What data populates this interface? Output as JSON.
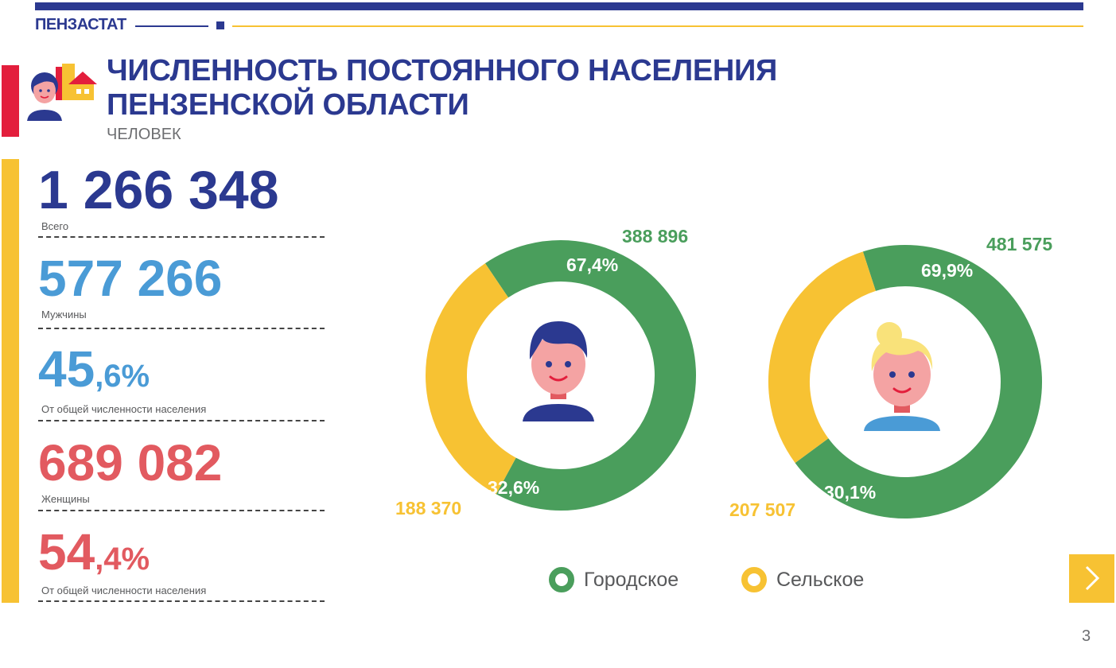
{
  "brand": "ПЕНЗАСТАТ",
  "title_line1": "ЧИСЛЕННОСТЬ ПОСТОЯННОГО НАСЕЛЕНИЯ",
  "title_line2": "ПЕНЗЕНСКОЙ ОБЛАСТИ",
  "subtitle": "ЧЕЛОВЕК",
  "stats": {
    "total": {
      "value": "1 266 348",
      "label": "Всего"
    },
    "men": {
      "value": "577 266",
      "label": "Мужчины"
    },
    "men_share": {
      "int": "45",
      "frac": ",6%",
      "label": "От общей численности  населения"
    },
    "women": {
      "value": "689 082",
      "label": "Женщины"
    },
    "women_share": {
      "int": "54",
      "frac": ",4%",
      "label": "От общей численности  населения"
    }
  },
  "colors": {
    "urban": "#4a9e5c",
    "rural": "#f7c233",
    "navy": "#2b3990",
    "light_blue": "#4a9bd6",
    "red": "#e25a60"
  },
  "icons": {
    "header": "population-people-house-icon",
    "men_chart": "man-avatar-icon",
    "women_chart": "woman-avatar-icon",
    "next": "chevron-right-icon"
  },
  "legend": {
    "urban": "Городское",
    "rural": "Сельское"
  },
  "page_number": "3",
  "chart_data": [
    {
      "type": "pie",
      "categories": [
        "Городское",
        "Сельское"
      ],
      "values": [
        388896,
        188370
      ],
      "value_labels": [
        "388 896",
        "188 370"
      ],
      "percent_labels": [
        "67,4%",
        "32,6%"
      ],
      "percents": [
        67.4,
        32.6
      ]
    },
    {
      "type": "pie",
      "categories": [
        "Городское",
        "Сельское"
      ],
      "values": [
        481575,
        207507
      ],
      "value_labels": [
        "481 575",
        "207 507"
      ],
      "percent_labels": [
        "69,9%",
        "30,1%"
      ],
      "percents": [
        69.9,
        30.1
      ]
    }
  ]
}
